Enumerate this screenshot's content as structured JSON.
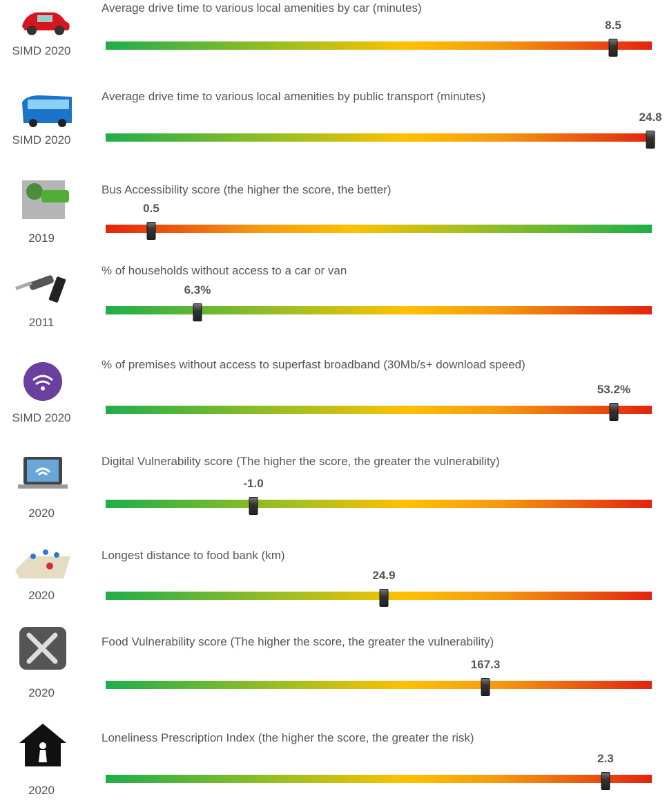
{
  "indicators": [
    {
      "source": "SIMD 2020",
      "title": "Average drive time to various local amenities by car (minutes)",
      "value": "8.5"
    },
    {
      "source": "SIMD 2020",
      "title": "Average drive time to various local amenities by public transport (minutes)",
      "value": "24.8"
    },
    {
      "source": "2019",
      "title": "Bus Accessibility score (the higher the score, the better)",
      "value": "0.5"
    },
    {
      "source": "2011",
      "title": "% of households without access to a car or van",
      "value": "6.3%"
    },
    {
      "source": "SIMD 2020",
      "title": "% of premises without access to superfast broadband (30Mb/s+ download speed)",
      "value": "53.2%"
    },
    {
      "source": "2020",
      "title": "Digital Vulnerability score (The higher the score, the greater the vulnerability)",
      "value": "-1.0"
    },
    {
      "source": "2020",
      "title": "Longest distance to food bank (km)",
      "value": "24.9"
    },
    {
      "source": "2020",
      "title": "Food Vulnerability score (The higher the score, the greater the vulnerability)",
      "value": "167.3"
    },
    {
      "source": "2020",
      "title": "Loneliness Prescription Index (the higher the score, the greater the risk)",
      "value": "2.3"
    }
  ]
}
